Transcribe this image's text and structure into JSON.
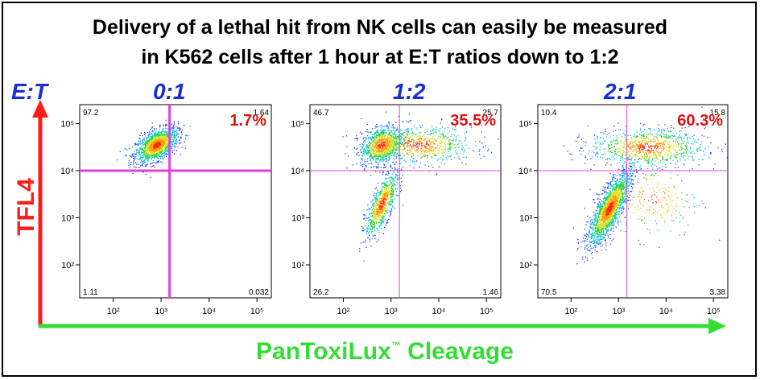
{
  "title_line1": "Delivery of a lethal hit from NK cells can easily be measured",
  "title_line2": "in K562  cells after 1 hour at E:T ratios down to 1:2",
  "et_axis_label": "E:T",
  "y_axis_label": "TFL4",
  "x_axis_label": "PanToxiLux",
  "x_axis_label_sup": "™",
  "x_axis_label_rest": " Cleavage",
  "colors": {
    "title_ratio": "#1a2ed6",
    "y_axis": "#ff1a1a",
    "x_axis": "#33dd33",
    "gate_line": "#e040e0",
    "percent": "#e01010"
  },
  "chart_data": [
    {
      "type": "scatter",
      "title": "0:1",
      "percent_label": "1.7%",
      "quadrants": {
        "ul": "97.2",
        "ur": "1.64",
        "ll": "1.11",
        "lr": "0.032"
      },
      "x_ticks": [
        "10²",
        "10³",
        "10⁴",
        "10⁵"
      ],
      "y_ticks": [
        "10²",
        "10³",
        "10⁴",
        "10⁵"
      ],
      "xlim_log10": [
        1.3,
        5.3
      ],
      "ylim_log10": [
        1.3,
        5.4
      ],
      "gate": {
        "x": 1500,
        "y": 10000
      },
      "gate_thick": true,
      "populations": [
        {
          "cx_log10": 2.9,
          "cy_log10": 4.55,
          "sx": 0.22,
          "sy": 0.18,
          "rho": 0.5,
          "n": 1500
        }
      ]
    },
    {
      "type": "scatter",
      "title": "1:2",
      "percent_label": "35.5%",
      "quadrants": {
        "ul": "46.7",
        "ur": "25.7",
        "ll": "26.2",
        "lr": "1.46"
      },
      "x_ticks": [
        "10²",
        "10³",
        "10⁴",
        "10⁵"
      ],
      "y_ticks": [
        "10²",
        "10³",
        "10⁴",
        "10⁵"
      ],
      "xlim_log10": [
        1.3,
        5.3
      ],
      "ylim_log10": [
        1.3,
        5.4
      ],
      "gate": {
        "x": 1500,
        "y": 10000
      },
      "gate_thick": false,
      "populations": [
        {
          "cx_log10": 2.8,
          "cy_log10": 4.55,
          "sx": 0.22,
          "sy": 0.2,
          "rho": 0.3,
          "n": 1000
        },
        {
          "cx_log10": 3.6,
          "cy_log10": 4.55,
          "sx": 0.55,
          "sy": 0.2,
          "rho": 0.0,
          "n": 700
        },
        {
          "cx_log10": 2.8,
          "cy_log10": 3.3,
          "sx": 0.17,
          "sy": 0.35,
          "rho": 0.75,
          "n": 800
        }
      ]
    },
    {
      "type": "scatter",
      "title": "2:1",
      "percent_label": "60.3%",
      "quadrants": {
        "ul": "10.4",
        "ur": "15.8",
        "ll": "70.5",
        "lr": "3.38"
      },
      "x_ticks": [
        "10²",
        "10³",
        "10⁴",
        "10⁵"
      ],
      "y_ticks": [
        "10²",
        "10³",
        "10⁴",
        "10⁵"
      ],
      "xlim_log10": [
        1.3,
        5.3
      ],
      "ylim_log10": [
        1.3,
        5.4
      ],
      "gate": {
        "x": 1500,
        "y": 10000
      },
      "gate_thick": false,
      "populations": [
        {
          "cx_log10": 2.8,
          "cy_log10": 3.2,
          "sx": 0.22,
          "sy": 0.38,
          "rho": 0.8,
          "n": 1900
        },
        {
          "cx_log10": 3.6,
          "cy_log10": 4.5,
          "sx": 0.6,
          "sy": 0.2,
          "rho": 0.0,
          "n": 900
        },
        {
          "cx_log10": 3.7,
          "cy_log10": 3.4,
          "sx": 0.5,
          "sy": 0.4,
          "rho": 0.0,
          "n": 250
        }
      ]
    }
  ]
}
